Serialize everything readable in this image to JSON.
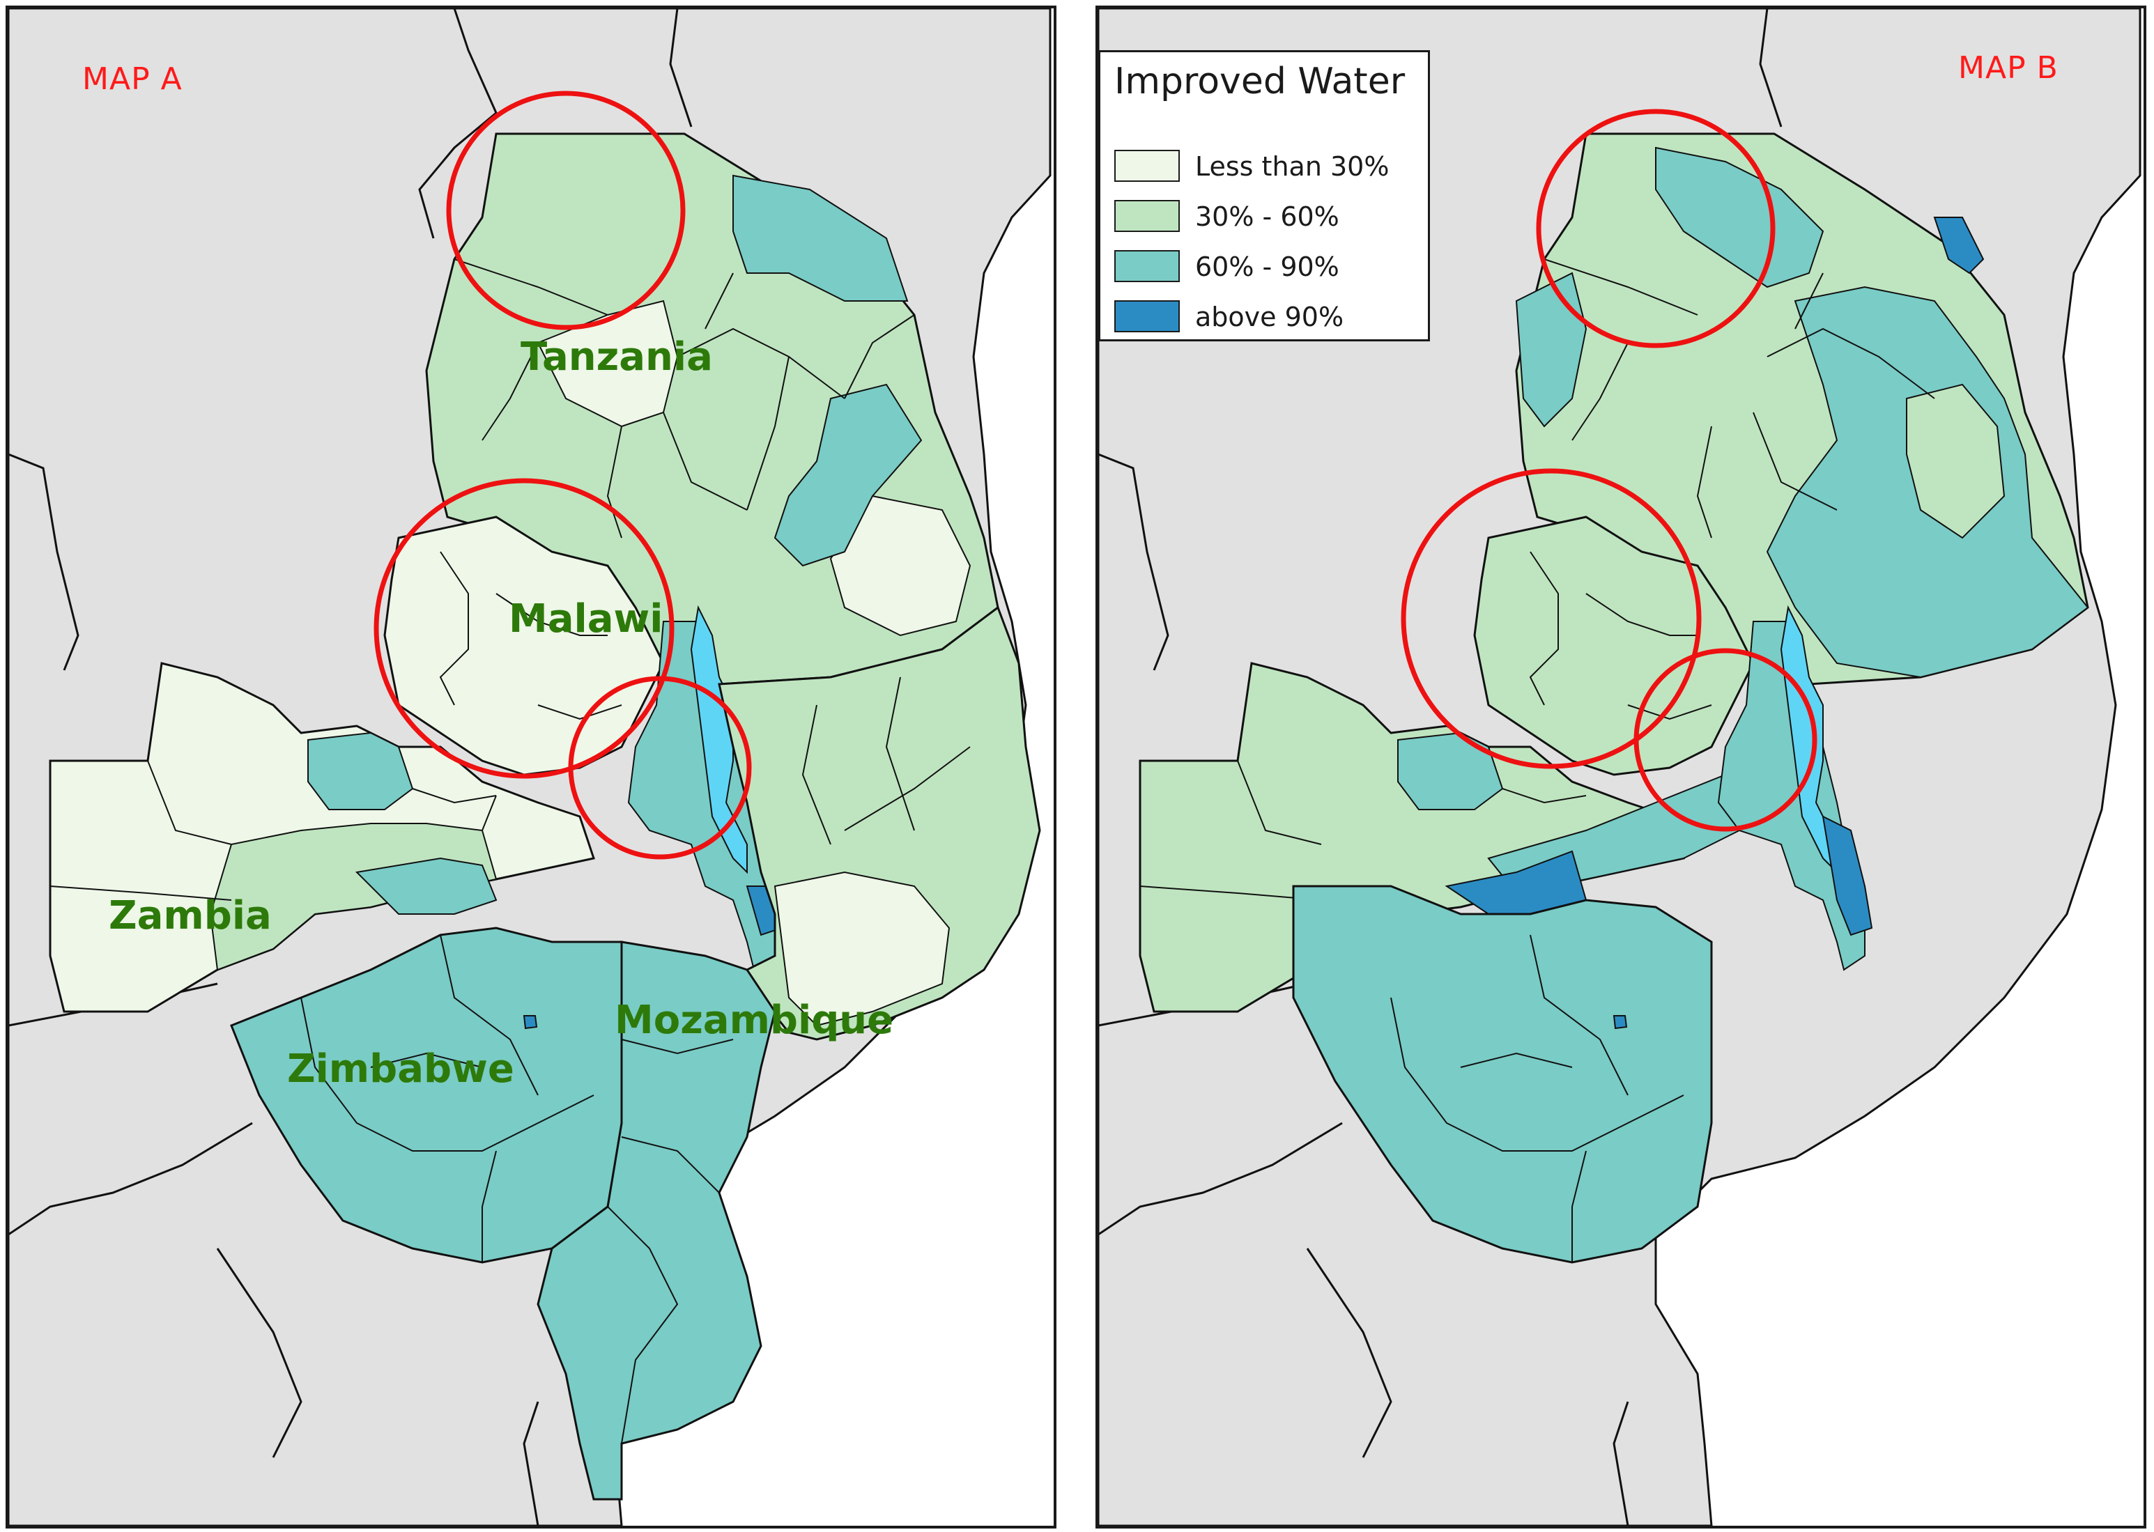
{
  "map_a": {
    "title": "MAP A",
    "labels": {
      "tanzania": "Tanzania",
      "malawi": "Malawi",
      "zambia": "Zambia",
      "zimbabwe": "Zimbabwe",
      "mozambique": "Mozambique"
    }
  },
  "map_b": {
    "title": "MAP B"
  },
  "legend": {
    "title": "Improved Water",
    "items": [
      {
        "label": "Less than 30%",
        "color": "#eef7e8"
      },
      {
        "label": "30% - 60%",
        "color": "#bfe5c0"
      },
      {
        "label": "60% - 90%",
        "color": "#7accc6"
      },
      {
        "label": "above 90%",
        "color": "#2b8cc4"
      }
    ]
  },
  "colors": {
    "background_land": "#e1e1e1",
    "sea": "#ffffff",
    "lake": "#5fd5f5",
    "highlight_circle": "#ee1111",
    "label_green": "#2d7a0a"
  }
}
